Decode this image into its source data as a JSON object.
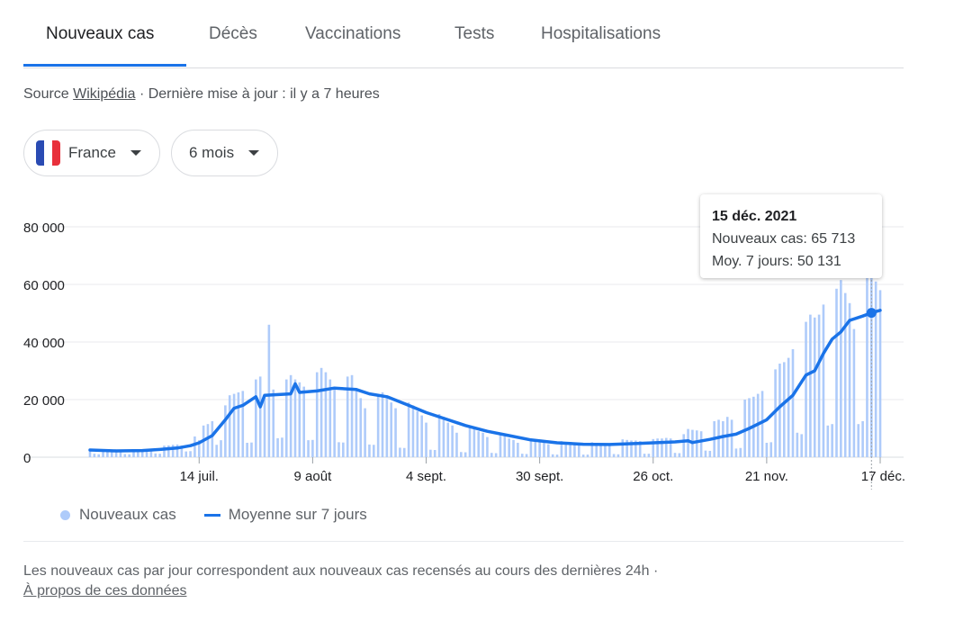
{
  "tabs": [
    {
      "label": "Nouveaux cas",
      "active": true
    },
    {
      "label": "Décès",
      "active": false
    },
    {
      "label": "Vaccinations",
      "active": false
    },
    {
      "label": "Tests",
      "active": false
    },
    {
      "label": "Hospitalisations",
      "active": false
    }
  ],
  "source": {
    "prefix": "Source ",
    "link": "Wikipédia",
    "suffix": " · Dernière mise à jour : il y a 7 heures"
  },
  "filters": {
    "country": "France",
    "period": "6 mois"
  },
  "legend": {
    "bars": "Nouveaux cas",
    "line": "Moyenne sur 7 jours"
  },
  "tooltip": {
    "date": "15 déc. 2021",
    "new_cases": "Nouveaux cas: 65 713",
    "avg": "Moy. 7 jours: 50 131"
  },
  "footnote": "Les nouveaux cas par jour correspondent aux nouveaux cas recensés au cours des dernières 24h  ·",
  "about_link": "À propos de ces données",
  "colors": {
    "bars": "#aecbfa",
    "line": "#1a73e8",
    "grid": "#e8eaed",
    "axis": "#202124"
  },
  "chart_data": {
    "type": "bar",
    "title": "",
    "xlabel": "",
    "ylabel": "",
    "ylim": [
      0,
      80000
    ],
    "yticks": [
      0,
      20000,
      40000,
      60000,
      80000
    ],
    "ytick_labels": [
      "0",
      "20 000",
      "40 000",
      "60 000",
      "80 000"
    ],
    "x_range": [
      "2021-06-19",
      "2021-12-17"
    ],
    "xticks": [
      {
        "date": "2021-07-14",
        "label": "14 juil."
      },
      {
        "date": "2021-08-09",
        "label": "9 août"
      },
      {
        "date": "2021-09-04",
        "label": "4 sept."
      },
      {
        "date": "2021-09-30",
        "label": "30 sept."
      },
      {
        "date": "2021-10-26",
        "label": "26 oct."
      },
      {
        "date": "2021-11-21",
        "label": "21 nov."
      },
      {
        "date": "2021-12-17",
        "label": "17 déc."
      }
    ],
    "highlight": {
      "date": "2021-12-15",
      "new_cases": 65713,
      "avg": 50131
    },
    "series": [
      {
        "name": "Nouveaux cas",
        "kind": "bar",
        "points": [
          [
            "2021-06-19",
            2400
          ],
          [
            "2021-06-20",
            1200
          ],
          [
            "2021-06-21",
            1000
          ],
          [
            "2021-06-22",
            2700
          ],
          [
            "2021-06-23",
            2600
          ],
          [
            "2021-06-24",
            2300
          ],
          [
            "2021-06-25",
            2200
          ],
          [
            "2021-06-26",
            2000
          ],
          [
            "2021-06-27",
            1100
          ],
          [
            "2021-06-28",
            1000
          ],
          [
            "2021-06-29",
            2600
          ],
          [
            "2021-06-30",
            2700
          ],
          [
            "2021-07-01",
            2500
          ],
          [
            "2021-07-02",
            2800
          ],
          [
            "2021-07-03",
            2700
          ],
          [
            "2021-07-04",
            1300
          ],
          [
            "2021-07-05",
            1200
          ],
          [
            "2021-07-06",
            4000
          ],
          [
            "2021-07-07",
            4100
          ],
          [
            "2021-07-08",
            4300
          ],
          [
            "2021-07-09",
            4400
          ],
          [
            "2021-07-10",
            4000
          ],
          [
            "2021-07-11",
            2000
          ],
          [
            "2021-07-12",
            2100
          ],
          [
            "2021-07-13",
            7200
          ],
          [
            "2021-07-14",
            5900
          ],
          [
            "2021-07-15",
            11000
          ],
          [
            "2021-07-16",
            11500
          ],
          [
            "2021-07-17",
            12500
          ],
          [
            "2021-07-18",
            4300
          ],
          [
            "2021-07-19",
            5900
          ],
          [
            "2021-07-20",
            18000
          ],
          [
            "2021-07-21",
            21500
          ],
          [
            "2021-07-22",
            22000
          ],
          [
            "2021-07-23",
            22500
          ],
          [
            "2021-07-24",
            23000
          ],
          [
            "2021-07-25",
            5000
          ],
          [
            "2021-07-26",
            5100
          ],
          [
            "2021-07-27",
            27000
          ],
          [
            "2021-07-28",
            28000
          ],
          [
            "2021-07-29",
            22000
          ],
          [
            "2021-07-30",
            46000
          ],
          [
            "2021-07-31",
            23500
          ],
          [
            "2021-08-01",
            6600
          ],
          [
            "2021-08-02",
            6800
          ],
          [
            "2021-08-03",
            27000
          ],
          [
            "2021-08-04",
            28500
          ],
          [
            "2021-08-05",
            27000
          ],
          [
            "2021-08-06",
            26000
          ],
          [
            "2021-08-07",
            24500
          ],
          [
            "2021-08-08",
            5900
          ],
          [
            "2021-08-09",
            6000
          ],
          [
            "2021-08-10",
            29500
          ],
          [
            "2021-08-11",
            31000
          ],
          [
            "2021-08-12",
            29500
          ],
          [
            "2021-08-13",
            27000
          ],
          [
            "2021-08-14",
            23500
          ],
          [
            "2021-08-15",
            5200
          ],
          [
            "2021-08-16",
            5100
          ],
          [
            "2021-08-17",
            28000
          ],
          [
            "2021-08-18",
            28500
          ],
          [
            "2021-08-19",
            24000
          ],
          [
            "2021-08-20",
            20500
          ],
          [
            "2021-08-21",
            17000
          ],
          [
            "2021-08-22",
            4400
          ],
          [
            "2021-08-23",
            4300
          ],
          [
            "2021-08-24",
            22000
          ],
          [
            "2021-08-25",
            22500
          ],
          [
            "2021-08-26",
            21000
          ],
          [
            "2021-08-27",
            19000
          ],
          [
            "2021-08-28",
            17000
          ],
          [
            "2021-08-29",
            3300
          ],
          [
            "2021-08-30",
            3200
          ],
          [
            "2021-08-31",
            19000
          ],
          [
            "2021-09-01",
            18000
          ],
          [
            "2021-09-02",
            16000
          ],
          [
            "2021-09-03",
            14500
          ],
          [
            "2021-09-04",
            12000
          ],
          [
            "2021-09-05",
            2600
          ],
          [
            "2021-09-06",
            2500
          ],
          [
            "2021-09-07",
            15000
          ],
          [
            "2021-09-08",
            14000
          ],
          [
            "2021-09-09",
            12000
          ],
          [
            "2021-09-10",
            11000
          ],
          [
            "2021-09-11",
            8500
          ],
          [
            "2021-09-12",
            1800
          ],
          [
            "2021-09-13",
            1700
          ],
          [
            "2021-09-14",
            11000
          ],
          [
            "2021-09-15",
            10500
          ],
          [
            "2021-09-16",
            9000
          ],
          [
            "2021-09-17",
            8500
          ],
          [
            "2021-09-18",
            7000
          ],
          [
            "2021-09-19",
            1500
          ],
          [
            "2021-09-20",
            1400
          ],
          [
            "2021-09-21",
            8500
          ],
          [
            "2021-09-22",
            7500
          ],
          [
            "2021-09-23",
            6500
          ],
          [
            "2021-09-24",
            6000
          ],
          [
            "2021-09-25",
            5000
          ],
          [
            "2021-09-26",
            1200
          ],
          [
            "2021-09-27",
            1100
          ],
          [
            "2021-09-28",
            6400
          ],
          [
            "2021-09-29",
            6000
          ],
          [
            "2021-09-30",
            5400
          ],
          [
            "2021-10-01",
            5000
          ],
          [
            "2021-10-02",
            4500
          ],
          [
            "2021-10-03",
            1000
          ],
          [
            "2021-10-04",
            900
          ],
          [
            "2021-10-05",
            5600
          ],
          [
            "2021-10-06",
            5200
          ],
          [
            "2021-10-07",
            4800
          ],
          [
            "2021-10-08",
            4500
          ],
          [
            "2021-10-09",
            4200
          ],
          [
            "2021-10-10",
            900
          ],
          [
            "2021-10-11",
            900
          ],
          [
            "2021-10-12",
            5200
          ],
          [
            "2021-10-13",
            5000
          ],
          [
            "2021-10-14",
            4800
          ],
          [
            "2021-10-15",
            4700
          ],
          [
            "2021-10-16",
            4600
          ],
          [
            "2021-10-17",
            1100
          ],
          [
            "2021-10-18",
            1000
          ],
          [
            "2021-10-19",
            6200
          ],
          [
            "2021-10-20",
            6000
          ],
          [
            "2021-10-21",
            5800
          ],
          [
            "2021-10-22",
            5800
          ],
          [
            "2021-10-23",
            5600
          ],
          [
            "2021-10-24",
            1200
          ],
          [
            "2021-10-25",
            1200
          ],
          [
            "2021-10-26",
            6300
          ],
          [
            "2021-10-27",
            6500
          ],
          [
            "2021-10-28",
            6500
          ],
          [
            "2021-10-29",
            6700
          ],
          [
            "2021-10-30",
            6500
          ],
          [
            "2021-10-31",
            1500
          ],
          [
            "2021-11-01",
            1400
          ],
          [
            "2021-11-02",
            8000
          ],
          [
            "2021-11-03",
            9800
          ],
          [
            "2021-11-04",
            9500
          ],
          [
            "2021-11-05",
            9300
          ],
          [
            "2021-11-06",
            9000
          ],
          [
            "2021-11-07",
            2300
          ],
          [
            "2021-11-08",
            2200
          ],
          [
            "2021-11-09",
            12500
          ],
          [
            "2021-11-10",
            13000
          ],
          [
            "2021-11-11",
            12500
          ],
          [
            "2021-11-12",
            14000
          ],
          [
            "2021-11-13",
            13000
          ],
          [
            "2021-11-14",
            3000
          ],
          [
            "2021-11-15",
            3200
          ],
          [
            "2021-11-16",
            20000
          ],
          [
            "2021-11-17",
            20500
          ],
          [
            "2021-11-18",
            21000
          ],
          [
            "2021-11-19",
            22000
          ],
          [
            "2021-11-20",
            23000
          ],
          [
            "2021-11-21",
            5000
          ],
          [
            "2021-11-22",
            5200
          ],
          [
            "2021-11-23",
            30500
          ],
          [
            "2021-11-24",
            32500
          ],
          [
            "2021-11-25",
            33000
          ],
          [
            "2021-11-26",
            34500
          ],
          [
            "2021-11-27",
            37500
          ],
          [
            "2021-11-28",
            8500
          ],
          [
            "2021-11-29",
            8000
          ],
          [
            "2021-11-30",
            47000
          ],
          [
            "2021-12-01",
            49500
          ],
          [
            "2021-12-02",
            48500
          ],
          [
            "2021-12-03",
            49500
          ],
          [
            "2021-12-04",
            53000
          ],
          [
            "2021-12-05",
            11000
          ],
          [
            "2021-12-06",
            11500
          ],
          [
            "2021-12-07",
            58500
          ],
          [
            "2021-12-08",
            61500
          ],
          [
            "2021-12-09",
            57000
          ],
          [
            "2021-12-10",
            53500
          ],
          [
            "2021-12-11",
            44500
          ],
          [
            "2021-12-12",
            11500
          ],
          [
            "2021-12-13",
            12500
          ],
          [
            "2021-12-14",
            63500
          ],
          [
            "2021-12-15",
            65713
          ],
          [
            "2021-12-16",
            61000
          ],
          [
            "2021-12-17",
            58000
          ]
        ]
      },
      {
        "name": "Moyenne sur 7 jours",
        "kind": "line",
        "points": [
          [
            "2021-06-19",
            2500
          ],
          [
            "2021-06-25",
            2200
          ],
          [
            "2021-07-01",
            2300
          ],
          [
            "2021-07-05",
            2700
          ],
          [
            "2021-07-09",
            3200
          ],
          [
            "2021-07-12",
            4000
          ],
          [
            "2021-07-14",
            5000
          ],
          [
            "2021-07-17",
            7500
          ],
          [
            "2021-07-20",
            13000
          ],
          [
            "2021-07-22",
            17000
          ],
          [
            "2021-07-24",
            18000
          ],
          [
            "2021-07-27",
            21000
          ],
          [
            "2021-07-28",
            17500
          ],
          [
            "2021-07-29",
            21500
          ],
          [
            "2021-08-04",
            22000
          ],
          [
            "2021-08-05",
            25500
          ],
          [
            "2021-08-06",
            22500
          ],
          [
            "2021-08-10",
            23000
          ],
          [
            "2021-08-14",
            24000
          ],
          [
            "2021-08-19",
            23500
          ],
          [
            "2021-08-22",
            22000
          ],
          [
            "2021-08-26",
            21000
          ],
          [
            "2021-08-31",
            18000
          ],
          [
            "2021-09-04",
            15500
          ],
          [
            "2021-09-09",
            13000
          ],
          [
            "2021-09-13",
            11000
          ],
          [
            "2021-09-18",
            9000
          ],
          [
            "2021-09-23",
            7500
          ],
          [
            "2021-09-28",
            6000
          ],
          [
            "2021-10-04",
            5000
          ],
          [
            "2021-10-10",
            4500
          ],
          [
            "2021-10-16",
            4400
          ],
          [
            "2021-10-23",
            4800
          ],
          [
            "2021-10-31",
            5300
          ],
          [
            "2021-11-03",
            5700
          ],
          [
            "2021-11-04",
            5100
          ],
          [
            "2021-11-08",
            6200
          ],
          [
            "2021-11-11",
            7200
          ],
          [
            "2021-11-14",
            8000
          ],
          [
            "2021-11-17",
            10000
          ],
          [
            "2021-11-21",
            13000
          ],
          [
            "2021-11-24",
            17500
          ],
          [
            "2021-11-27",
            21500
          ],
          [
            "2021-11-30",
            28500
          ],
          [
            "2021-12-02",
            30000
          ],
          [
            "2021-12-04",
            36000
          ],
          [
            "2021-12-06",
            41000
          ],
          [
            "2021-12-08",
            43500
          ],
          [
            "2021-12-10",
            47500
          ],
          [
            "2021-12-13",
            49000
          ],
          [
            "2021-12-15",
            50131
          ],
          [
            "2021-12-17",
            51000
          ]
        ]
      }
    ],
    "legend": "bottom-left",
    "grid": true
  }
}
